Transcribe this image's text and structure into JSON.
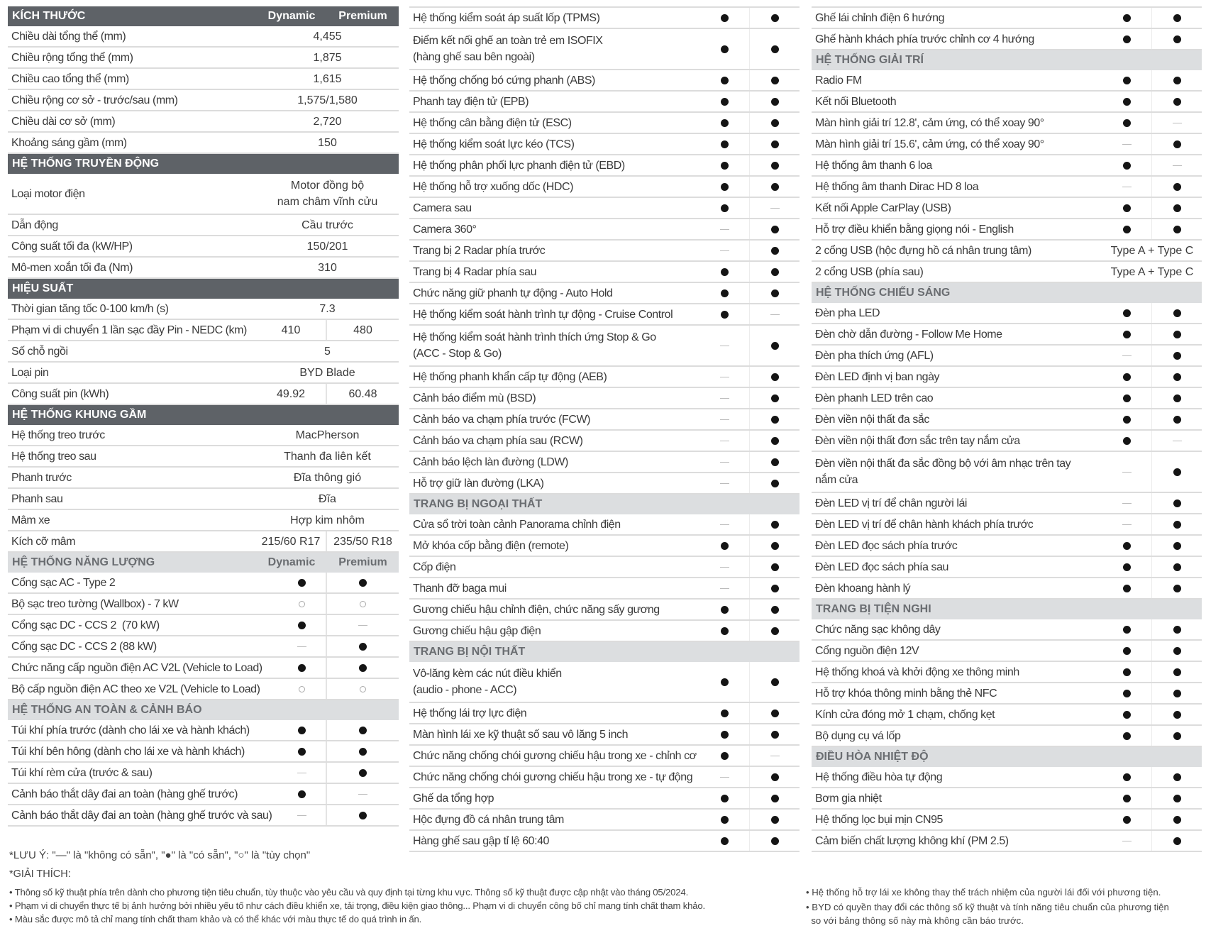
{
  "variants": [
    "Dynamic",
    "Premium"
  ],
  "columns": [
    {
      "sections": [
        {
          "title": "KÍCH THƯỚC",
          "style": "dark",
          "show_variants": true,
          "rows": [
            {
              "label": "Chiều dài tổng thể (mm)",
              "span": "4,455"
            },
            {
              "label": "Chiều rộng tổng thể (mm)",
              "span": "1,875"
            },
            {
              "label": "Chiều cao tổng thể (mm)",
              "span": "1,615"
            },
            {
              "label": "Chiều rộng cơ sở - trước/sau (mm)",
              "span": "1,575/1,580"
            },
            {
              "label": "Chiều dài cơ sở (mm)",
              "span": "2,720"
            },
            {
              "label": "Khoảng sáng gầm (mm)",
              "span": "150"
            }
          ]
        },
        {
          "title": "HỆ THỐNG TRUYỀN ĐỘNG",
          "style": "dark",
          "rows": [
            {
              "label": "Loại motor điện",
              "span": "Motor đồng bộ\nnam châm vĩnh cửu",
              "double": true
            },
            {
              "label": "Dẫn động",
              "span": "Cầu trước"
            },
            {
              "label": "Công suất tối đa (kW/HP)",
              "span": "150/201"
            },
            {
              "label": "Mô-men xoắn tối đa (Nm)",
              "span": "310"
            }
          ]
        },
        {
          "title": "HIỆU SUẤT",
          "style": "dark",
          "rows": [
            {
              "label": "Thời gian tăng tốc 0-100 km/h (s)",
              "span": "7.3"
            },
            {
              "label": "Phạm vi di chuyển 1 lần sạc đầy Pin - NEDC (km)",
              "values": [
                "410",
                "480"
              ]
            },
            {
              "label": "Số chỗ ngồi",
              "span": "5"
            },
            {
              "label": "Loại pin",
              "span": "BYD Blade"
            },
            {
              "label": "Công suất pin (kWh)",
              "values": [
                "49.92",
                "60.48"
              ]
            }
          ]
        },
        {
          "title": "HỆ THỐNG KHUNG GẦM",
          "style": "dark",
          "rows": [
            {
              "label": "Hệ thống treo trước",
              "span": "MacPherson"
            },
            {
              "label": "Hệ thống treo sau",
              "span": "Thanh đa liên kết"
            },
            {
              "label": "Phanh trước",
              "span": "Đĩa thông gió"
            },
            {
              "label": "Phanh sau",
              "span": "Đĩa"
            },
            {
              "label": "Mâm xe",
              "span": "Hợp kim nhôm"
            },
            {
              "label": "Kích cỡ mâm",
              "values": [
                "215/60 R17",
                "235/50 R18"
              ]
            }
          ]
        },
        {
          "title": "HỆ THỐNG NĂNG LƯỢNG",
          "style": "light",
          "show_variants": true,
          "rows": [
            {
              "label": "Cổng sạc AC - Type 2",
              "marks": [
                "yes",
                "yes"
              ]
            },
            {
              "label": "Bộ sạc treo tường (Wallbox) - 7 kW",
              "marks": [
                "opt",
                "opt"
              ]
            },
            {
              "label": "Cổng sạc DC - CCS 2  (70 kW)",
              "marks": [
                "yes",
                "no"
              ]
            },
            {
              "label": "Cổng sạc DC - CCS 2 (88 kW)",
              "marks": [
                "no",
                "yes"
              ]
            },
            {
              "label": "Chức năng cấp nguồn điện AC V2L (Vehicle to Load)",
              "marks": [
                "yes",
                "yes"
              ]
            },
            {
              "label": "Bộ cấp nguồn điện AC theo xe V2L (Vehicle to Load)",
              "marks": [
                "opt",
                "opt"
              ]
            }
          ]
        },
        {
          "title": "HỆ THỐNG AN TOÀN & CẢNH BÁO",
          "style": "light",
          "rows": [
            {
              "label": "Túi khí phía trước (dành cho lái xe và hành khách)",
              "marks": [
                "yes",
                "yes"
              ]
            },
            {
              "label": "Túi khí bên hông (dành cho lái xe và hành khách)",
              "marks": [
                "yes",
                "yes"
              ]
            },
            {
              "label": "Túi khí rèm cửa (trước & sau)",
              "marks": [
                "no",
                "yes"
              ]
            },
            {
              "label": "Cảnh báo thắt dây đai an toàn (hàng ghế trước)",
              "marks": [
                "yes",
                "no"
              ]
            },
            {
              "label": "Cảnh báo thắt dây đai an toàn (hàng ghế trước và sau)",
              "marks": [
                "no",
                "yes"
              ]
            }
          ]
        }
      ]
    },
    {
      "sections": [
        {
          "rows": [
            {
              "label": "Hệ thống kiểm soát áp suất lốp (TPMS)",
              "marks": [
                "yes",
                "yes"
              ]
            },
            {
              "label": "Điểm kết nối ghế an toàn trẻ em ISOFIX\n(hàng ghế sau bên ngoài)",
              "marks": [
                "yes",
                "yes"
              ],
              "double": true
            },
            {
              "label": "Hệ thống chống bó cứng phanh (ABS)",
              "marks": [
                "yes",
                "yes"
              ]
            },
            {
              "label": "Phanh tay điện tử (EPB)",
              "marks": [
                "yes",
                "yes"
              ]
            },
            {
              "label": "Hệ thống cân bằng điện tử (ESC)",
              "marks": [
                "yes",
                "yes"
              ]
            },
            {
              "label": "Hệ thống kiểm soát lực kéo (TCS)",
              "marks": [
                "yes",
                "yes"
              ]
            },
            {
              "label": "Hệ thống phân phối lực phanh điện tử (EBD)",
              "marks": [
                "yes",
                "yes"
              ]
            },
            {
              "label": "Hệ thống hỗ trợ xuống dốc (HDC)",
              "marks": [
                "yes",
                "yes"
              ]
            },
            {
              "label": "Camera sau",
              "marks": [
                "yes",
                "no"
              ]
            },
            {
              "label": "Camera 360°",
              "marks": [
                "no",
                "yes"
              ]
            },
            {
              "label": "Trang bị 2 Radar phía trước",
              "marks": [
                "no",
                "yes"
              ]
            },
            {
              "label": "Trang bị 4 Radar phía sau",
              "marks": [
                "yes",
                "yes"
              ]
            },
            {
              "label": "Chức năng giữ phanh tự động - Auto Hold",
              "marks": [
                "yes",
                "yes"
              ]
            },
            {
              "label": "Hệ thống kiểm soát hành trình tự động - Cruise Control",
              "marks": [
                "yes",
                "no"
              ]
            },
            {
              "label": "Hệ thống kiểm soát hành trình thích ứng Stop & Go\n(ACC - Stop & Go)",
              "marks": [
                "no",
                "yes"
              ],
              "double": true
            },
            {
              "label": "Hệ thống phanh khẩn cấp tự động (AEB)",
              "marks": [
                "no",
                "yes"
              ]
            },
            {
              "label": "Cảnh báo điểm mù (BSD)",
              "marks": [
                "no",
                "yes"
              ]
            },
            {
              "label": "Cảnh báo va chạm phía trước (FCW)",
              "marks": [
                "no",
                "yes"
              ]
            },
            {
              "label": "Cảnh báo va chạm phía sau (RCW)",
              "marks": [
                "no",
                "yes"
              ]
            },
            {
              "label": "Cảnh báo lệch làn đường (LDW)",
              "marks": [
                "no",
                "yes"
              ]
            },
            {
              "label": "Hỗ trợ giữ làn đường (LKA)",
              "marks": [
                "no",
                "yes"
              ]
            }
          ]
        },
        {
          "title": "TRANG BỊ NGOẠI THẤT",
          "style": "light",
          "rows": [
            {
              "label": "Cửa sổ trời toàn cảnh Panorama chỉnh điện",
              "marks": [
                "no",
                "yes"
              ]
            },
            {
              "label": "Mở khóa cốp bằng điện (remote)",
              "marks": [
                "yes",
                "yes"
              ]
            },
            {
              "label": "Cốp điện",
              "marks": [
                "no",
                "yes"
              ]
            },
            {
              "label": "Thanh đỡ baga mui",
              "marks": [
                "no",
                "yes"
              ]
            },
            {
              "label": "Gương chiếu hậu chỉnh điện, chức năng sấy gương",
              "marks": [
                "yes",
                "yes"
              ]
            },
            {
              "label": "Gương chiếu hậu gập điện",
              "marks": [
                "yes",
                "yes"
              ]
            }
          ]
        },
        {
          "title": "TRANG BỊ NỘI THẤT",
          "style": "light",
          "rows": [
            {
              "label": "Vô-lăng kèm các nút điều khiển\n(audio - phone - ACC)",
              "marks": [
                "yes",
                "yes"
              ],
              "double": true
            },
            {
              "label": "Hệ thống lái trợ lực điện",
              "marks": [
                "yes",
                "yes"
              ]
            },
            {
              "label": "Màn hình lái xe kỹ thuật số sau vô lăng 5 inch",
              "marks": [
                "yes",
                "yes"
              ]
            },
            {
              "label": "Chức năng chống chói gương chiếu hậu trong xe - chỉnh cơ",
              "marks": [
                "yes",
                "no"
              ]
            },
            {
              "label": "Chức năng chống chói gương chiếu hậu trong xe - tự động",
              "marks": [
                "no",
                "yes"
              ]
            },
            {
              "label": "Ghế da tổng hợp",
              "marks": [
                "yes",
                "yes"
              ]
            },
            {
              "label": "Hộc đựng đồ cá nhân trung tâm",
              "marks": [
                "yes",
                "yes"
              ]
            },
            {
              "label": "Hàng ghế sau gập tỉ lệ 60:40",
              "marks": [
                "yes",
                "yes"
              ]
            }
          ]
        }
      ]
    },
    {
      "sections": [
        {
          "rows": [
            {
              "label": "Ghế lái chỉnh điện 6 hướng",
              "marks": [
                "yes",
                "yes"
              ]
            },
            {
              "label": "Ghế hành khách phía trước chỉnh cơ 4 hướng",
              "marks": [
                "yes",
                "yes"
              ]
            }
          ]
        },
        {
          "title": "HỆ THỐNG GIẢI TRÍ",
          "style": "light",
          "rows": [
            {
              "label": "Radio FM",
              "marks": [
                "yes",
                "yes"
              ]
            },
            {
              "label": "Kết nối Bluetooth",
              "marks": [
                "yes",
                "yes"
              ]
            },
            {
              "label": "Màn hình giải trí 12.8', cảm ứng, có thể xoay 90°",
              "marks": [
                "yes",
                "no"
              ]
            },
            {
              "label": "Màn hình giải trí 15.6', cảm ứng, có thể xoay 90°",
              "marks": [
                "no",
                "yes"
              ]
            },
            {
              "label": "Hệ thống âm thanh 6 loa",
              "marks": [
                "yes",
                "no"
              ]
            },
            {
              "label": "Hệ thống âm thanh Dirac HD 8 loa",
              "marks": [
                "no",
                "yes"
              ]
            },
            {
              "label": "Kết nối Apple CarPlay (USB)",
              "marks": [
                "yes",
                "yes"
              ]
            },
            {
              "label": "Hỗ trợ điều khiển bằng giọng nói - English",
              "marks": [
                "yes",
                "yes"
              ]
            },
            {
              "label": "2 cổng USB (hộc đựng hồ cá nhân trung tâm)",
              "span": "Type A + Type C"
            },
            {
              "label": "2 cổng USB (phía sau)",
              "span": "Type A + Type C"
            }
          ]
        },
        {
          "title": "HỆ THỐNG CHIẾU SÁNG",
          "style": "light",
          "rows": [
            {
              "label": "Đèn pha LED",
              "marks": [
                "yes",
                "yes"
              ]
            },
            {
              "label": "Đèn chờ dẫn đường - Follow Me Home",
              "marks": [
                "yes",
                "yes"
              ]
            },
            {
              "label": "Đèn pha thích ứng (AFL)",
              "marks": [
                "no",
                "yes"
              ]
            },
            {
              "label": "Đèn LED định vị ban ngày",
              "marks": [
                "yes",
                "yes"
              ]
            },
            {
              "label": "Đèn phanh LED trên cao",
              "marks": [
                "yes",
                "yes"
              ]
            },
            {
              "label": "Đèn viền nội thất đa sắc",
              "marks": [
                "yes",
                "yes"
              ]
            },
            {
              "label": "Đèn viền nội thất đơn sắc trên tay nắm cửa",
              "marks": [
                "yes",
                "no"
              ]
            },
            {
              "label": "Đèn viền nội thất đa sắc đồng bộ với âm nhạc trên tay\nnắm cửa",
              "marks": [
                "no",
                "yes"
              ],
              "double": true
            },
            {
              "label": "Đèn LED vị trí để chân người lái",
              "marks": [
                "no",
                "yes"
              ]
            },
            {
              "label": "Đèn LED vị trí để chân hành khách phía trước",
              "marks": [
                "no",
                "yes"
              ]
            },
            {
              "label": "Đèn LED đọc sách phía trước",
              "marks": [
                "yes",
                "yes"
              ]
            },
            {
              "label": "Đèn LED đọc sách phía sau",
              "marks": [
                "yes",
                "yes"
              ]
            },
            {
              "label": "Đèn khoang hành lý",
              "marks": [
                "yes",
                "yes"
              ]
            }
          ]
        },
        {
          "title": "TRANG BỊ TIỆN NGHI",
          "style": "light",
          "rows": [
            {
              "label": "Chức năng sạc không dây",
              "marks": [
                "yes",
                "yes"
              ]
            },
            {
              "label": "Cổng nguồn điện 12V",
              "marks": [
                "yes",
                "yes"
              ]
            },
            {
              "label": "Hệ thống khoá và khởi động xe thông minh",
              "marks": [
                "yes",
                "yes"
              ]
            },
            {
              "label": "Hỗ trợ khóa thông minh bằng thẻ NFC",
              "marks": [
                "yes",
                "yes"
              ]
            },
            {
              "label": "Kính cửa đóng mở 1 chạm, chống kẹt",
              "marks": [
                "yes",
                "yes"
              ]
            },
            {
              "label": "Bộ dụng cụ vá lốp",
              "marks": [
                "yes",
                "yes"
              ]
            }
          ]
        },
        {
          "title": "ĐIỀU HÒA NHIỆT ĐỘ",
          "style": "light",
          "rows": [
            {
              "label": "Hệ thống điều hòa tự động",
              "marks": [
                "yes",
                "yes"
              ]
            },
            {
              "label": "Bơm gia nhiệt",
              "marks": [
                "yes",
                "yes"
              ]
            },
            {
              "label": "Hệ thống lọc bụi mịn CN95",
              "marks": [
                "yes",
                "yes"
              ]
            },
            {
              "label": "Cảm biến chất lượng không khí (PM 2.5)",
              "marks": [
                "no",
                "yes"
              ]
            }
          ]
        }
      ]
    }
  ],
  "mark_icons": {
    "yes": "filled-dot-icon",
    "no": "dash-icon",
    "opt": "hollow-circle-icon"
  },
  "footer": {
    "legend": "*LƯU Ý:  \"—\" là \"không có sẵn\", \"●\" là \"có sẵn\", \"○\" là \"tùy chọn\"",
    "explanation_title": "*GIẢI THÍCH:",
    "notes_left": [
      "• Thông số kỹ thuật phía trên dành cho phương tiện tiêu chuẩn, tùy thuộc vào yêu cầu và quy định tại từng khu vực. Thông số kỹ thuật được cập nhật vào tháng 05/2024.",
      "• Phạm vi di chuyển thực tế bị ảnh hưởng bởi nhiều yếu tố như cách điều khiển xe, tải trọng, điều kiện giao thông... Phạm vi di chuyển công bố chỉ mang tính chất tham khảo.",
      "• Màu sắc được mô tả chỉ mang tính chất tham khảo và có thể khác với màu thực tế do quá trình in ấn."
    ],
    "notes_right": [
      "• Hệ thống hỗ trợ lái xe không thay thế trách nhiệm của người lái đối với phương tiện.",
      "• BYD có quyền thay đổi các thông số kỹ thuật và tính năng tiêu chuẩn của phương tiện\n  so với bảng thông số này mà không cần báo trước."
    ]
  }
}
